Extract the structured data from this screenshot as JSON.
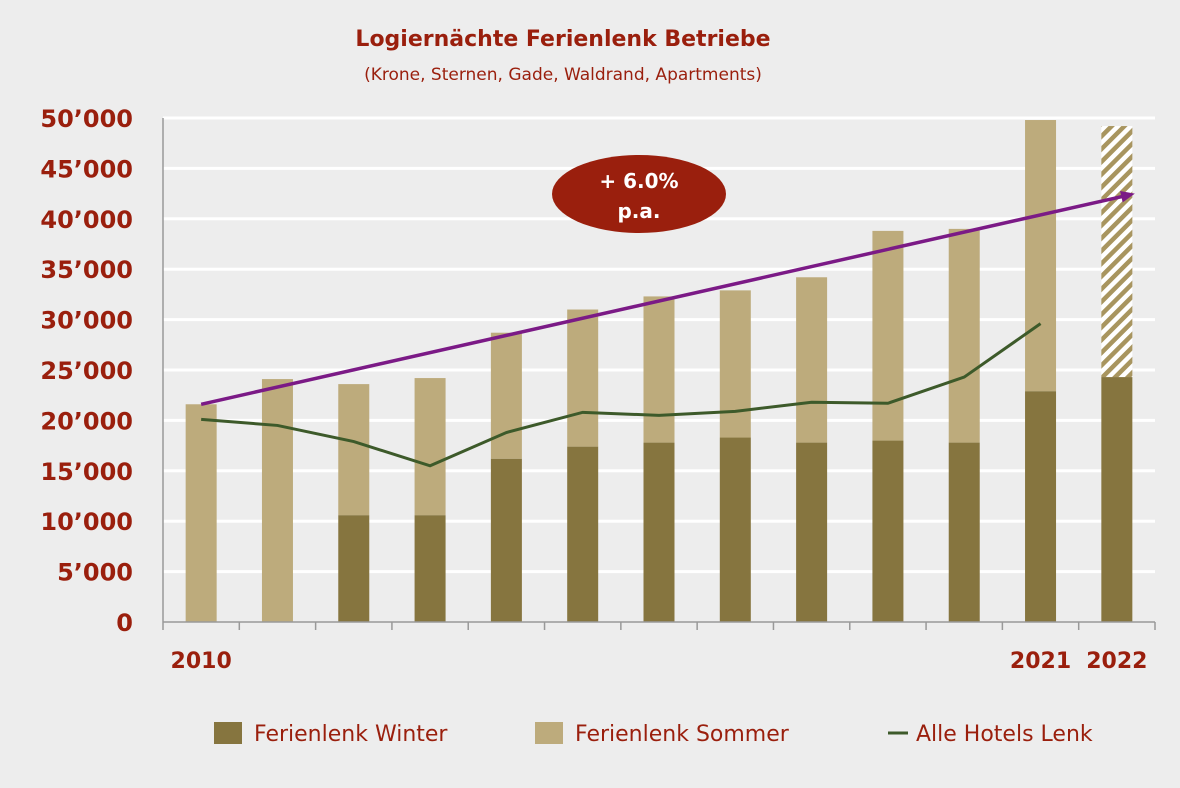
{
  "chart_data": {
    "type": "bar",
    "title": "Logiernächte Ferienlenk Betriebe",
    "subtitle": "(Krone, Sternen, Gade, Waldrand, Apartments)",
    "x": [
      2010,
      2011,
      2012,
      2013,
      2014,
      2015,
      2016,
      2017,
      2018,
      2019,
      2020,
      2021,
      2022
    ],
    "x_tick_labels": [
      "2010",
      "",
      "",
      "",
      "",
      "",
      "",
      "",
      "",
      "",
      "",
      "2021",
      "2022"
    ],
    "ylim": [
      0,
      50000
    ],
    "y_ticks": [
      0,
      5000,
      10000,
      15000,
      20000,
      25000,
      30000,
      35000,
      40000,
      45000,
      50000
    ],
    "y_tick_labels": [
      "0",
      "5’000",
      "10’000",
      "15’000",
      "20’000",
      "25’000",
      "30’000",
      "35’000",
      "40’000",
      "45’000",
      "50’000"
    ],
    "grid": true,
    "stacked": true,
    "series": [
      {
        "name": "Ferienlenk Winter",
        "type": "bar",
        "color": "#86753f",
        "values": [
          0,
          0,
          10600,
          10600,
          16200,
          17400,
          17800,
          18300,
          17800,
          18000,
          17800,
          22900,
          24300
        ]
      },
      {
        "name": "Ferienlenk Sommer",
        "type": "bar",
        "color": "#bdab7c",
        "values": [
          21600,
          24100,
          13000,
          13600,
          12500,
          13600,
          14500,
          14600,
          16400,
          20800,
          21200,
          26900,
          24900
        ],
        "hatched_last": true
      },
      {
        "name": "Alle Hotels Lenk",
        "type": "line",
        "color": "#3d5a2a",
        "values": [
          20100,
          19500,
          17900,
          15500,
          18800,
          20800,
          20500,
          20900,
          21800,
          21700,
          24300,
          29600,
          null
        ]
      }
    ],
    "trend": {
      "color": "#7b1a86",
      "from": [
        2010,
        21600
      ],
      "to": [
        2022,
        42500
      ]
    },
    "annotation": {
      "line1": "+ 6.0%",
      "line2": "p.a.",
      "color": "#9a1f0d"
    },
    "legend_placement": "bottom",
    "text_color": "#9a1f0d"
  }
}
